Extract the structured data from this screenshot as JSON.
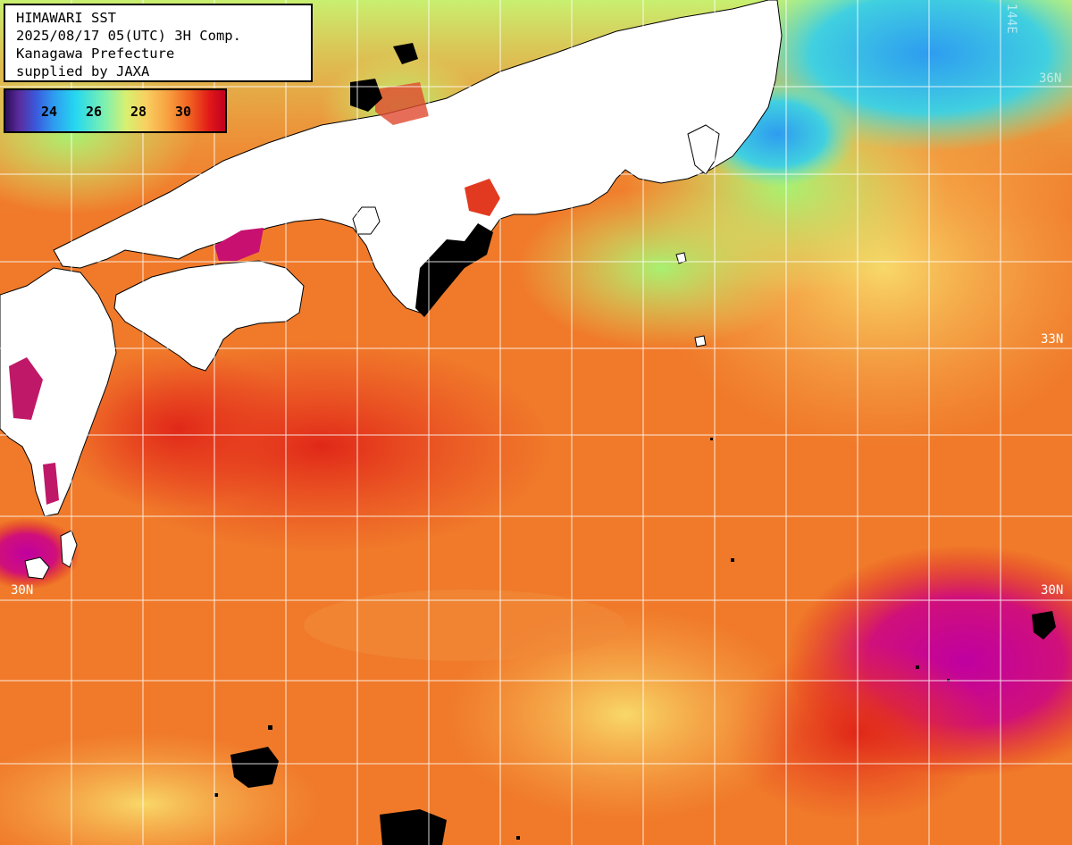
{
  "header": {
    "line1": "HIMAWARI SST",
    "line2": "2025/08/17 05(UTC) 3H Comp.",
    "line3": "Kanagawa Prefecture",
    "line4": "supplied by JAXA"
  },
  "legend": {
    "ticks": [
      "24",
      "26",
      "28",
      "30"
    ],
    "colors": {
      "cold": "#2a0f5a",
      "cool": "#2e9cf0",
      "mid": "#d8f070",
      "warm": "#f07a2a",
      "hot": "#e01818",
      "hottest": "#c000a0"
    }
  },
  "grid_labels": {
    "lat_33n": "33N",
    "lat_30n": "30N",
    "lat_36n": "36N",
    "lon_144e": "144E",
    "partial_33": "33"
  },
  "colors": {
    "land": "#ffffff",
    "no_data": "#000000",
    "grid": "#ffffff"
  }
}
